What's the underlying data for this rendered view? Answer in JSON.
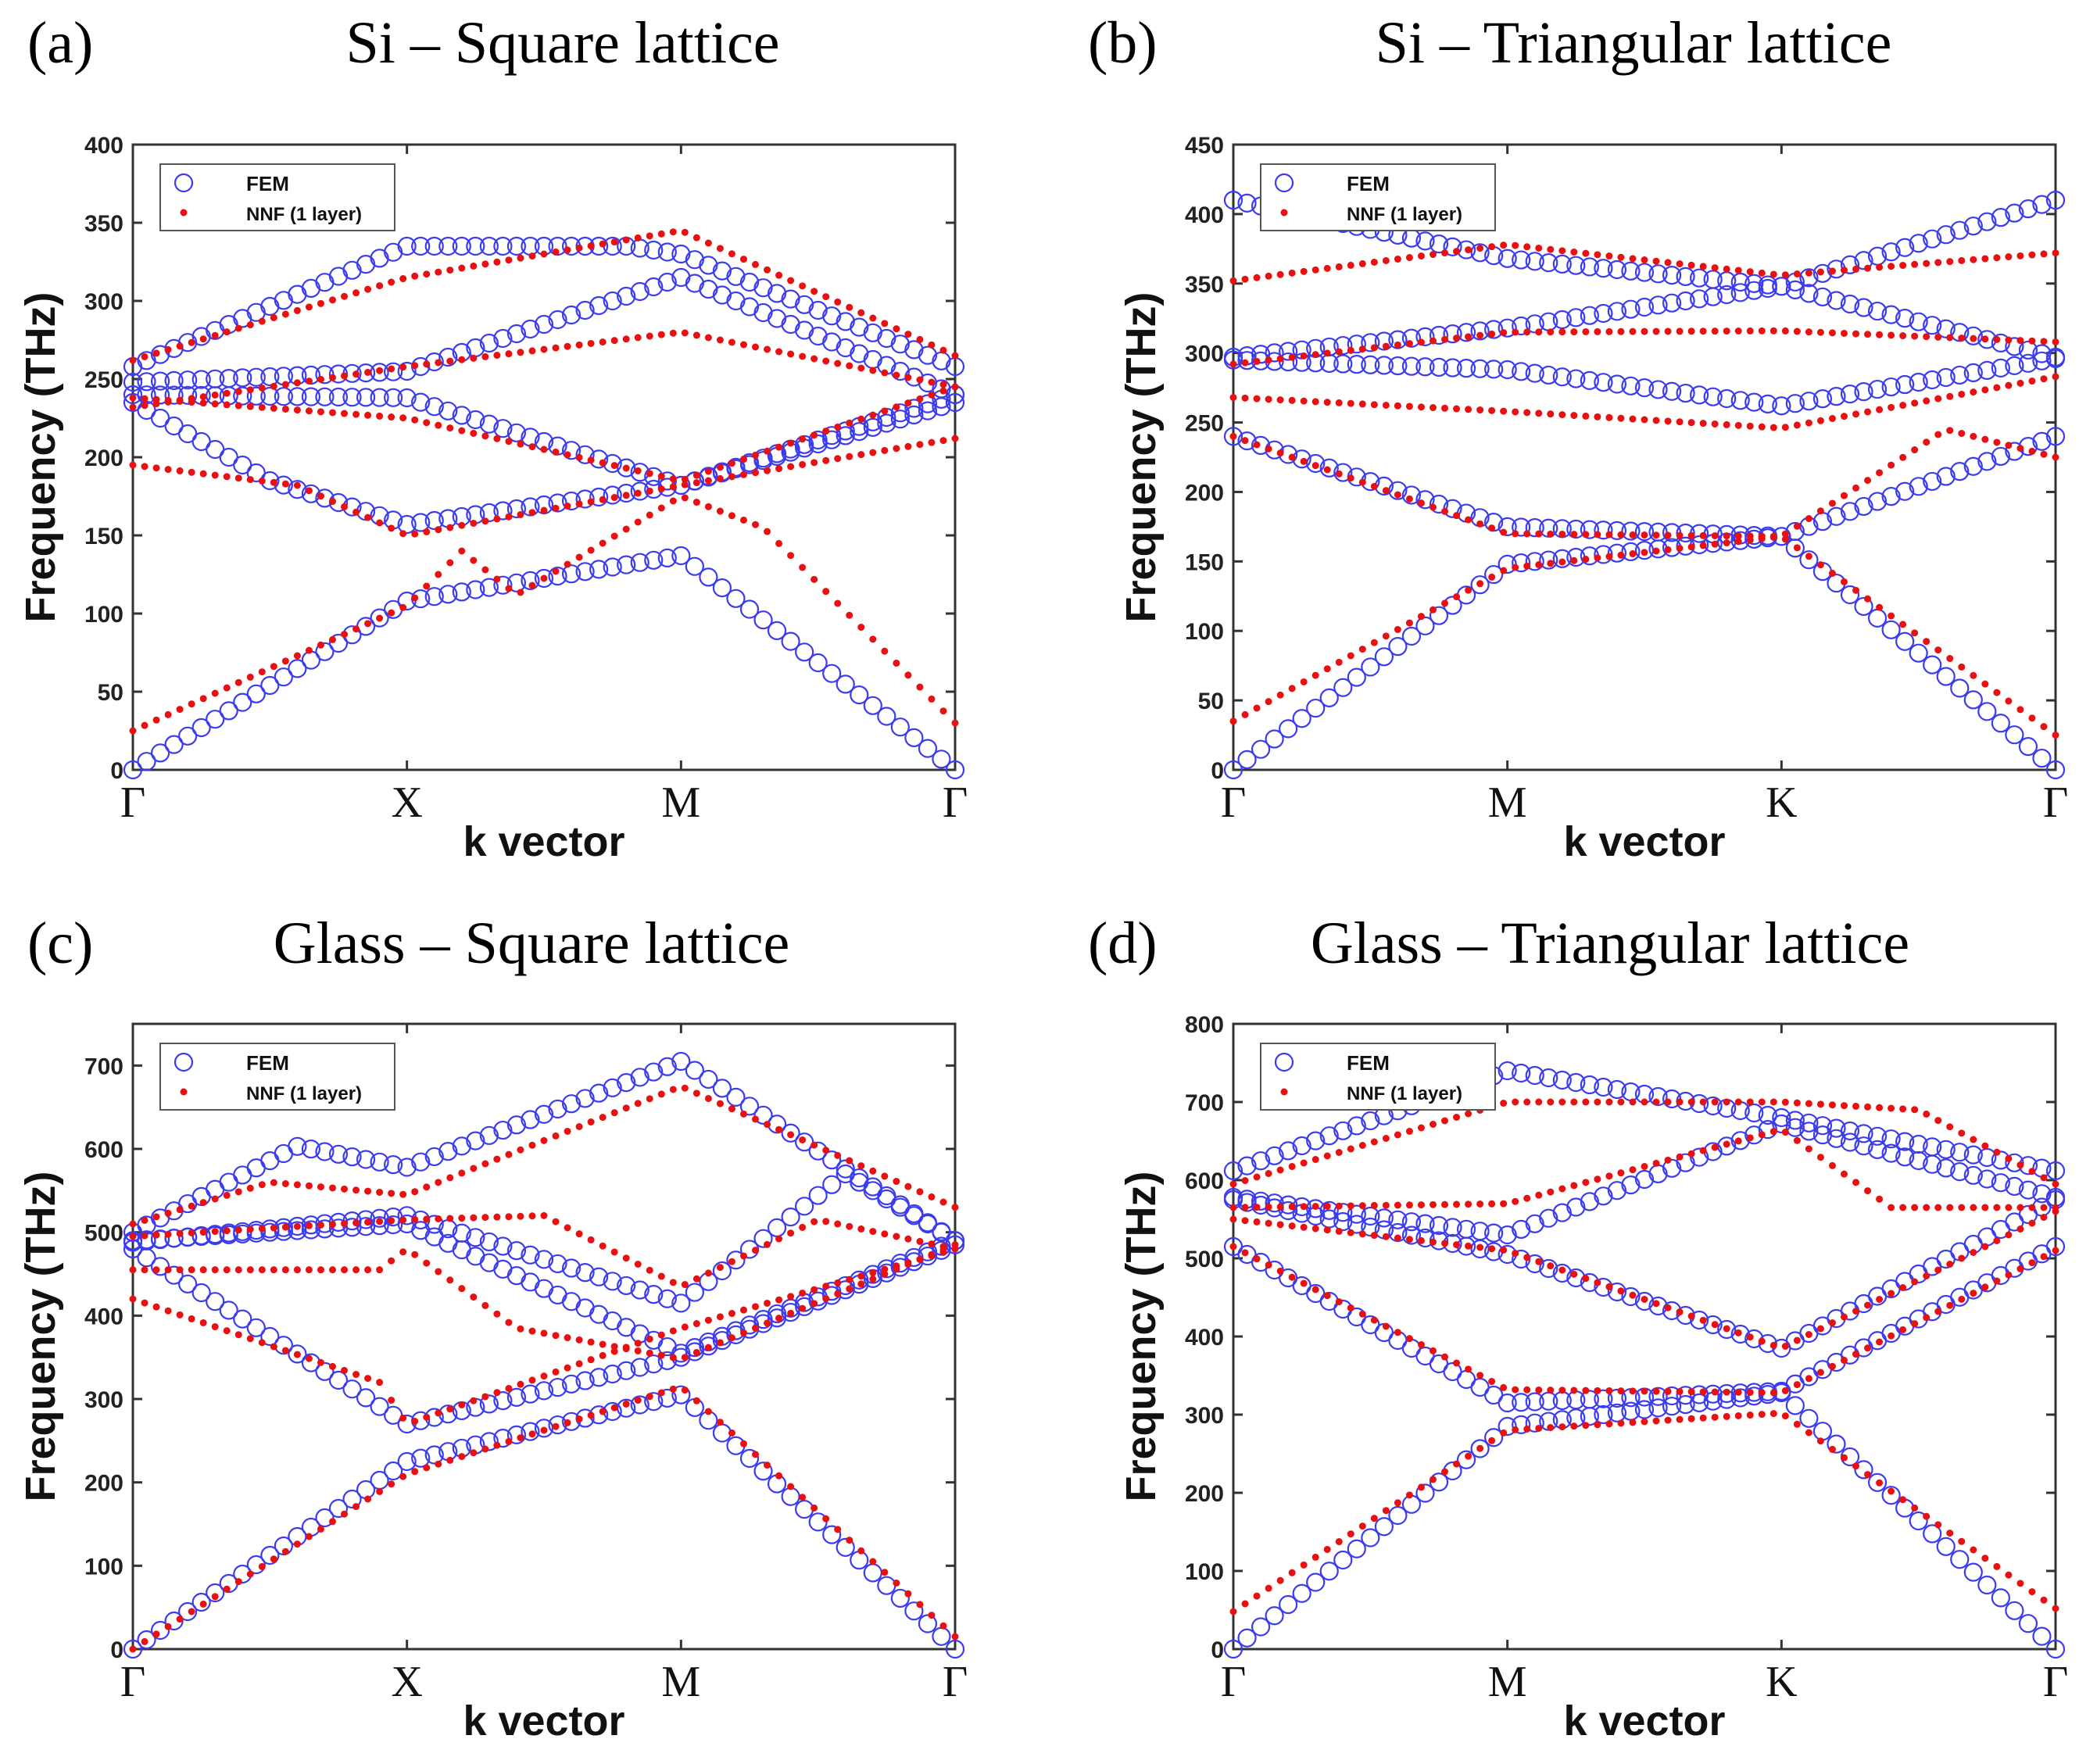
{
  "colors": {
    "fem": "#3b3bf0",
    "nnf": "#e81010"
  },
  "chart_data": [
    {
      "type": "scatter",
      "panel": "(a)",
      "title": "Si – Square lattice",
      "xlabel": "k vector",
      "ylabel": "Frequency (THz)",
      "ylim": [
        0,
        400
      ],
      "yticks": [
        0,
        50,
        100,
        150,
        200,
        250,
        300,
        350,
        400
      ],
      "xticks": [
        "Γ",
        "X",
        "M",
        "Γ"
      ],
      "legend": [
        "FEM",
        "NNF (1 layer)"
      ],
      "legend_position": "top-left",
      "series": [
        {
          "name": "FEM",
          "bands": [
            [
              [
                0,
                0
              ],
              [
                1,
                108
              ],
              [
                2,
                137
              ],
              [
                3,
                0
              ]
            ],
            [
              [
                0,
                235
              ],
              [
                0.5,
                185
              ],
              [
                1,
                157
              ],
              [
                2,
                182
              ],
              [
                3,
                240
              ]
            ],
            [
              [
                0,
                240
              ],
              [
                1,
                238
              ],
              [
                2,
                182
              ],
              [
                3,
                235
              ]
            ],
            [
              [
                0,
                248
              ],
              [
                1,
                255
              ],
              [
                2,
                315
              ],
              [
                3,
                240
              ]
            ],
            [
              [
                0,
                258
              ],
              [
                1,
                335
              ],
              [
                1.8,
                335
              ],
              [
                2,
                330
              ],
              [
                3,
                258
              ]
            ]
          ]
        },
        {
          "name": "NNF (1 layer)",
          "bands": [
            [
              [
                0,
                25
              ],
              [
                1,
                105
              ],
              [
                1.2,
                140
              ],
              [
                1.4,
                112
              ],
              [
                2,
                175
              ],
              [
                2.3,
                155
              ],
              [
                3,
                30
              ]
            ],
            [
              [
                0,
                195
              ],
              [
                0.6,
                182
              ],
              [
                1,
                150
              ],
              [
                2,
                182
              ],
              [
                3,
                212
              ]
            ],
            [
              [
                0,
                238
              ],
              [
                1,
                225
              ],
              [
                2,
                185
              ],
              [
                3,
                245
              ]
            ],
            [
              [
                0,
                232
              ],
              [
                1,
                258
              ],
              [
                2,
                280
              ],
              [
                3,
                245
              ]
            ],
            [
              [
                0,
                262
              ],
              [
                1,
                315
              ],
              [
                2,
                345
              ],
              [
                3,
                265
              ]
            ]
          ]
        }
      ]
    },
    {
      "type": "scatter",
      "panel": "(b)",
      "title": "Si – Triangular lattice",
      "xlabel": "k vector",
      "ylabel": "Frequency (THz)",
      "ylim": [
        0,
        450
      ],
      "yticks": [
        0,
        50,
        100,
        150,
        200,
        250,
        300,
        350,
        400,
        450
      ],
      "xticks": [
        "Γ",
        "M",
        "K",
        "Γ"
      ],
      "legend": [
        "FEM",
        "NNF (1 layer)"
      ],
      "legend_position": "top-left",
      "series": [
        {
          "name": "FEM",
          "bands": [
            [
              [
                0,
                0
              ],
              [
                1,
                148
              ],
              [
                2,
                168
              ],
              [
                3,
                0
              ]
            ],
            [
              [
                0,
                240
              ],
              [
                1,
                175
              ],
              [
                2,
                168
              ],
              [
                3,
                240
              ]
            ],
            [
              [
                0,
                295
              ],
              [
                1,
                288
              ],
              [
                2,
                262
              ],
              [
                3,
                296
              ]
            ],
            [
              [
                0,
                297
              ],
              [
                1,
                318
              ],
              [
                2,
                348
              ],
              [
                3,
                297
              ]
            ],
            [
              [
                0,
                410
              ],
              [
                1,
                368
              ],
              [
                2,
                348
              ],
              [
                3,
                410
              ]
            ]
          ]
        },
        {
          "name": "NNF (1 layer)",
          "bands": [
            [
              [
                0,
                35
              ],
              [
                1,
                145
              ],
              [
                2,
                168
              ],
              [
                3,
                25
              ]
            ],
            [
              [
                0,
                240
              ],
              [
                1,
                170
              ],
              [
                2,
                168
              ],
              [
                2.6,
                245
              ],
              [
                3,
                225
              ]
            ],
            [
              [
                0,
                268
              ],
              [
                1,
                258
              ],
              [
                2,
                246
              ],
              [
                3,
                283
              ]
            ],
            [
              [
                0,
                292
              ],
              [
                1,
                315
              ],
              [
                2,
                316
              ],
              [
                3,
                308
              ]
            ],
            [
              [
                0,
                352
              ],
              [
                1,
                378
              ],
              [
                2,
                356
              ],
              [
                3,
                372
              ]
            ]
          ]
        }
      ]
    },
    {
      "type": "scatter",
      "panel": "(c)",
      "title": "Glass – Square lattice",
      "xlabel": "k vector",
      "ylabel": "Frequency (THz)",
      "ylim": [
        0,
        750
      ],
      "yticks": [
        0,
        100,
        200,
        300,
        400,
        500,
        600,
        700
      ],
      "xticks": [
        "Γ",
        "X",
        "M",
        "Γ"
      ],
      "legend": [
        "FEM",
        "NNF (1 layer)"
      ],
      "legend_position": "top-left",
      "series": [
        {
          "name": "FEM",
          "bands": [
            [
              [
                0,
                0
              ],
              [
                1,
                225
              ],
              [
                2,
                305
              ],
              [
                3,
                0
              ]
            ],
            [
              [
                0,
                480
              ],
              [
                1,
                270
              ],
              [
                2,
                350
              ],
              [
                3,
                485
              ]
            ],
            [
              [
                0,
                490
              ],
              [
                1,
                510
              ],
              [
                2,
                355
              ],
              [
                3,
                490
              ]
            ],
            [
              [
                0,
                488
              ],
              [
                1,
                520
              ],
              [
                2,
                415
              ],
              [
                2.6,
                570
              ],
              [
                3,
                490
              ]
            ],
            [
              [
                0,
                500
              ],
              [
                0.6,
                603
              ],
              [
                1,
                578
              ],
              [
                2,
                705
              ],
              [
                3,
                490
              ]
            ]
          ]
        },
        {
          "name": "NNF (1 layer)",
          "bands": [
            [
              [
                0,
                0
              ],
              [
                1,
                210
              ],
              [
                2,
                315
              ],
              [
                3,
                15
              ]
            ],
            [
              [
                0,
                420
              ],
              [
                0.9,
                320
              ],
              [
                1,
                270
              ],
              [
                2,
                385
              ],
              [
                3,
                480
              ]
            ],
            [
              [
                0,
                455
              ],
              [
                0.9,
                455
              ],
              [
                1,
                480
              ],
              [
                1.4,
                385
              ],
              [
                2,
                348
              ],
              [
                3,
                485
              ]
            ],
            [
              [
                0,
                495
              ],
              [
                1,
                515
              ],
              [
                1.5,
                520
              ],
              [
                2,
                435
              ],
              [
                2.5,
                515
              ],
              [
                3,
                480
              ]
            ],
            [
              [
                0,
                510
              ],
              [
                0.5,
                560
              ],
              [
                1,
                545
              ],
              [
                2,
                675
              ],
              [
                3,
                530
              ]
            ]
          ]
        }
      ]
    },
    {
      "type": "scatter",
      "panel": "(d)",
      "title": "Glass – Triangular lattice",
      "xlabel": "k vector",
      "ylabel": "Frequency (THz)",
      "ylim": [
        0,
        800
      ],
      "yticks": [
        0,
        100,
        200,
        300,
        400,
        500,
        600,
        700,
        800
      ],
      "xticks": [
        "Γ",
        "M",
        "K",
        "Γ"
      ],
      "legend": [
        "FEM",
        "NNF (1 layer)"
      ],
      "legend_position": "top-left",
      "series": [
        {
          "name": "FEM",
          "bands": [
            [
              [
                0,
                0
              ],
              [
                1,
                285
              ],
              [
                2,
                328
              ],
              [
                3,
                0
              ]
            ],
            [
              [
                0,
                515
              ],
              [
                1,
                315
              ],
              [
                2,
                330
              ],
              [
                3,
                515
              ]
            ],
            [
              [
                0,
                575
              ],
              [
                1,
                505
              ],
              [
                2,
                385
              ],
              [
                3,
                575
              ]
            ],
            [
              [
                0,
                578
              ],
              [
                1,
                530
              ],
              [
                2,
                672
              ],
              [
                3,
                578
              ]
            ],
            [
              [
                0,
                612
              ],
              [
                1,
                740
              ],
              [
                2,
                680
              ],
              [
                3,
                612
              ]
            ]
          ]
        },
        {
          "name": "NNF (1 layer)",
          "bands": [
            [
              [
                0,
                48
              ],
              [
                1,
                280
              ],
              [
                2,
                302
              ],
              [
                3,
                52
              ]
            ],
            [
              [
                0,
                515
              ],
              [
                1,
                332
              ],
              [
                2,
                328
              ],
              [
                3,
                510
              ]
            ],
            [
              [
                0,
                550
              ],
              [
                1,
                510
              ],
              [
                2,
                385
              ],
              [
                3,
                560
              ]
            ],
            [
              [
                0,
                565
              ],
              [
                1,
                570
              ],
              [
                2,
                665
              ],
              [
                2.4,
                565
              ],
              [
                3,
                565
              ]
            ],
            [
              [
                0,
                595
              ],
              [
                1,
                700
              ],
              [
                2,
                700
              ],
              [
                2.5,
                690
              ],
              [
                3,
                595
              ]
            ]
          ]
        }
      ]
    }
  ]
}
